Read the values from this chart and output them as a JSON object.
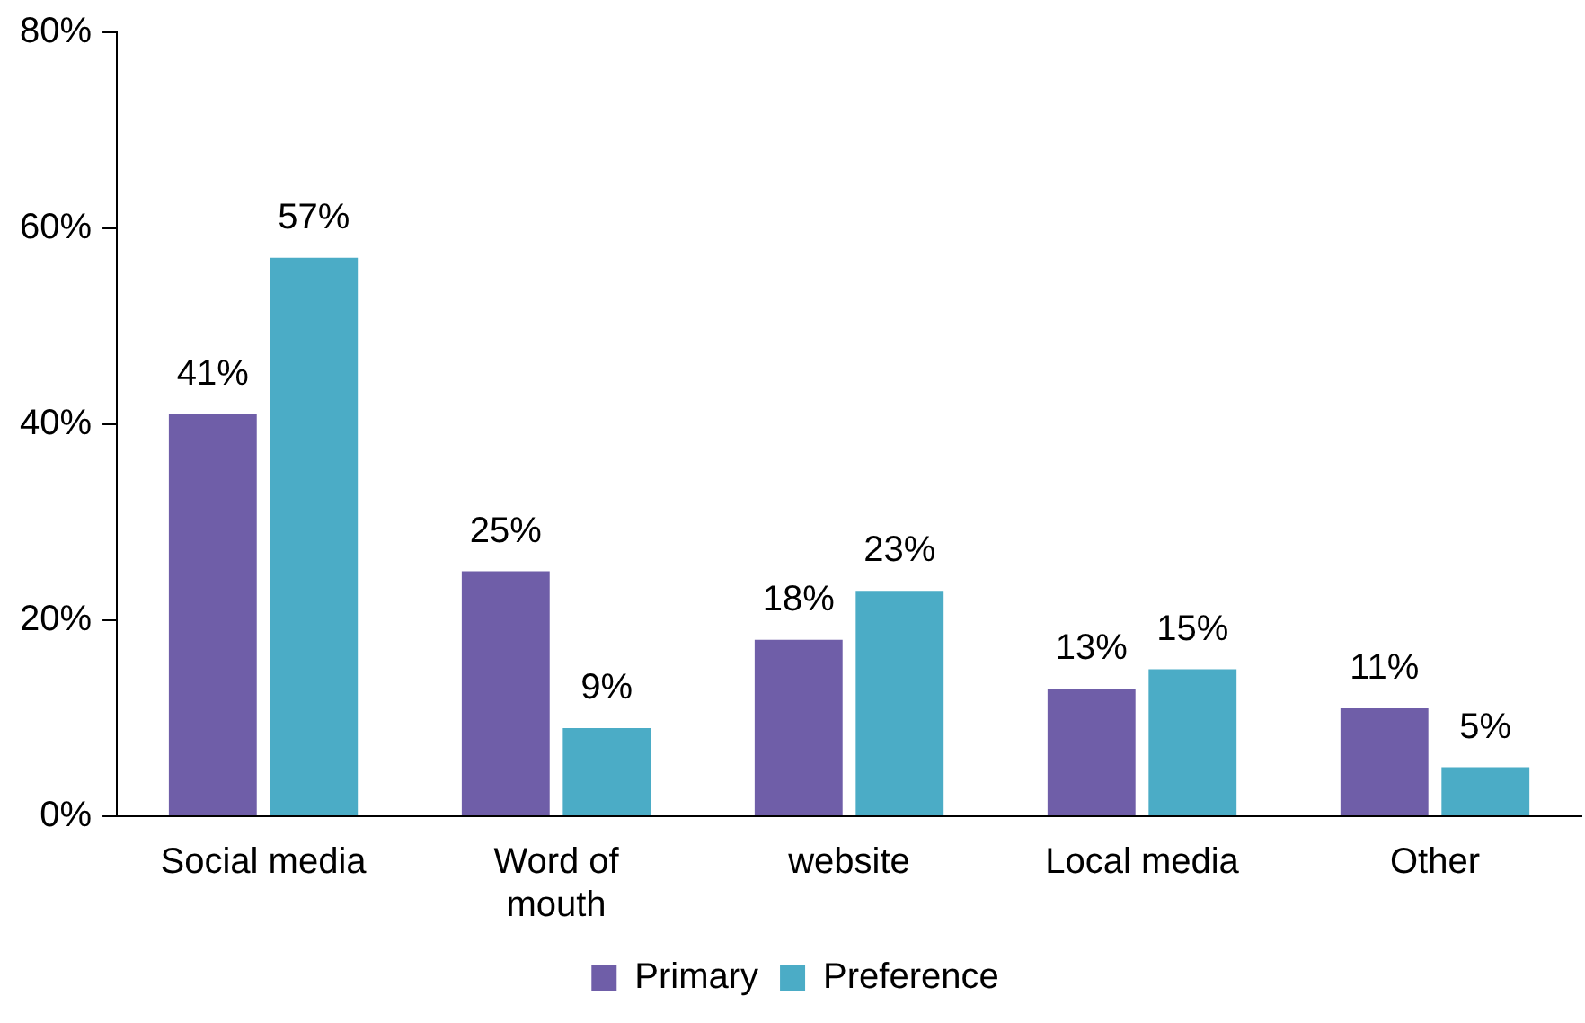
{
  "chart_data": {
    "type": "bar",
    "categories": [
      "Social media",
      "Word of mouth",
      "website",
      "Local media",
      "Other"
    ],
    "series": [
      {
        "name": "Primary",
        "color": "#6f5ea8",
        "values": [
          41,
          25,
          18,
          13,
          11
        ],
        "value_labels": [
          "41%",
          "25%",
          "18%",
          "13%",
          "11%"
        ]
      },
      {
        "name": "Preference",
        "color": "#4bacc6",
        "values": [
          57,
          9,
          23,
          15,
          5
        ],
        "value_labels": [
          "57%",
          "9%",
          "23%",
          "15%",
          "5%"
        ]
      }
    ],
    "ylim": [
      0,
      80
    ],
    "yticks": [
      {
        "value": 0,
        "label": "0%"
      },
      {
        "value": 20,
        "label": "20%"
      },
      {
        "value": 40,
        "label": "40%"
      },
      {
        "value": 60,
        "label": "60%"
      },
      {
        "value": 80,
        "label": "80%"
      }
    ],
    "grid": false,
    "legend": "bottom"
  }
}
